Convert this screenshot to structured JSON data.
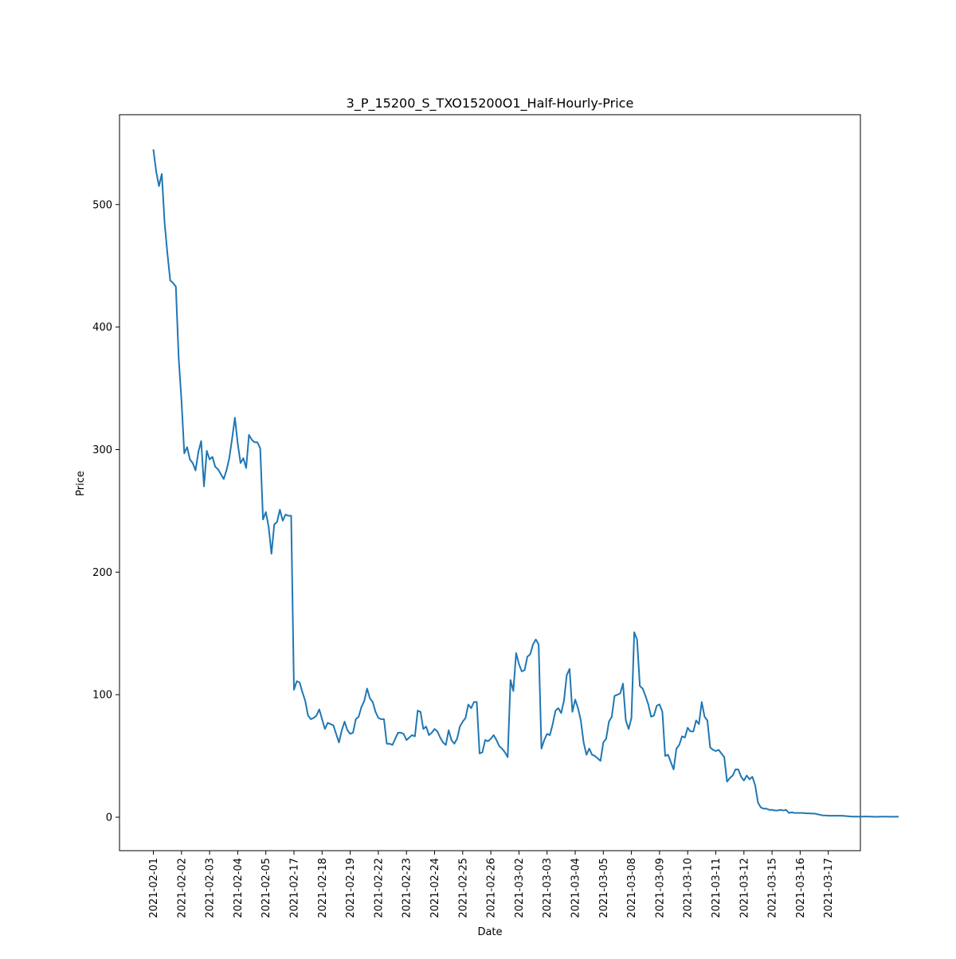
{
  "chart_data": {
    "type": "line",
    "title": "3_P_15200_S_TXO15200O1_Half-Hourly-Price",
    "xlabel": "Date",
    "ylabel": "Price",
    "ylim": [
      -27.3,
      573.3
    ],
    "y_ticks": [
      0,
      100,
      200,
      300,
      400,
      500
    ],
    "x_ticks": [
      "2021-02-01",
      "2021-02-02",
      "2021-02-03",
      "2021-02-04",
      "2021-02-05",
      "2021-02-17",
      "2021-02-18",
      "2021-02-19",
      "2021-02-22",
      "2021-02-23",
      "2021-02-24",
      "2021-02-25",
      "2021-02-26",
      "2021-03-02",
      "2021-03-03",
      "2021-03-04",
      "2021-03-05",
      "2021-03-08",
      "2021-03-09",
      "2021-03-10",
      "2021-03-11",
      "2021-03-12",
      "2021-03-15",
      "2021-03-16",
      "2021-03-17"
    ],
    "x_note": "Trading sessions are plotted at equal spacing (categorical dates, weekends and holidays removed); each session has 10 half-hourly points.",
    "grid": false,
    "legend": "none",
    "series": [
      {
        "name": "",
        "color": "#1f77b4",
        "values": [
          545,
          527,
          515,
          525,
          485,
          460,
          438,
          436,
          433,
          375,
          340,
          297,
          302,
          292,
          289,
          283,
          298,
          307,
          270,
          299,
          292,
          294,
          286,
          284,
          280,
          276,
          283,
          293,
          309,
          326,
          305,
          289,
          293,
          285,
          312,
          308,
          306,
          306,
          301,
          243,
          249,
          237,
          215,
          239,
          241,
          251,
          242,
          247,
          246,
          246,
          104,
          111,
          110,
          102,
          95,
          83,
          80,
          81,
          83,
          88,
          80,
          72,
          77,
          76,
          75,
          68,
          61,
          71,
          78,
          71,
          68,
          69,
          80,
          82,
          90,
          95,
          105,
          97,
          94,
          86,
          81,
          80,
          80,
          60,
          60,
          59,
          64,
          69,
          69,
          68,
          63,
          65,
          67,
          66,
          87,
          86,
          72,
          74,
          67,
          69,
          72,
          70,
          65,
          61,
          59,
          71,
          63,
          60,
          64,
          74,
          78,
          81,
          92,
          89,
          94,
          94,
          52,
          53,
          63,
          62,
          64,
          67,
          63,
          58,
          56,
          53,
          49,
          112,
          103,
          134,
          125,
          119,
          120,
          131,
          133,
          141,
          145,
          141,
          56,
          63,
          68,
          67,
          76,
          87,
          89,
          85,
          95,
          116,
          121,
          86,
          96,
          89,
          79,
          61,
          51,
          56,
          51,
          50,
          48,
          46,
          61,
          64,
          78,
          82,
          99,
          100,
          101,
          109,
          79,
          72,
          81,
          151,
          145,
          107,
          105,
          99,
          92,
          82,
          83,
          91,
          92,
          86,
          50,
          51,
          45,
          39,
          56,
          59,
          66,
          65,
          73,
          70,
          70,
          79,
          76,
          94,
          82,
          79,
          57,
          55,
          54,
          55,
          52,
          49,
          29,
          32,
          34,
          39,
          39,
          33,
          30,
          34,
          31,
          33,
          26,
          12,
          8,
          7,
          7,
          6,
          6,
          5.5,
          5.5,
          6,
          5.5,
          6,
          3.5,
          4,
          3.5,
          3.5,
          3.5,
          3.5,
          3.2,
          3.2,
          3.0,
          3.0,
          2.5,
          2.0,
          1.5,
          1.5,
          1.2,
          1.2,
          1.2,
          1.2,
          1.2,
          1.2,
          1.0,
          0.8,
          0.6,
          0.5,
          0.5,
          0.5,
          0.5,
          0.6,
          0.6,
          0.5,
          0.4,
          0.3,
          0.4,
          0.5,
          0.5,
          0.4,
          0.4,
          0.4,
          0.4,
          0.5
        ]
      }
    ]
  }
}
